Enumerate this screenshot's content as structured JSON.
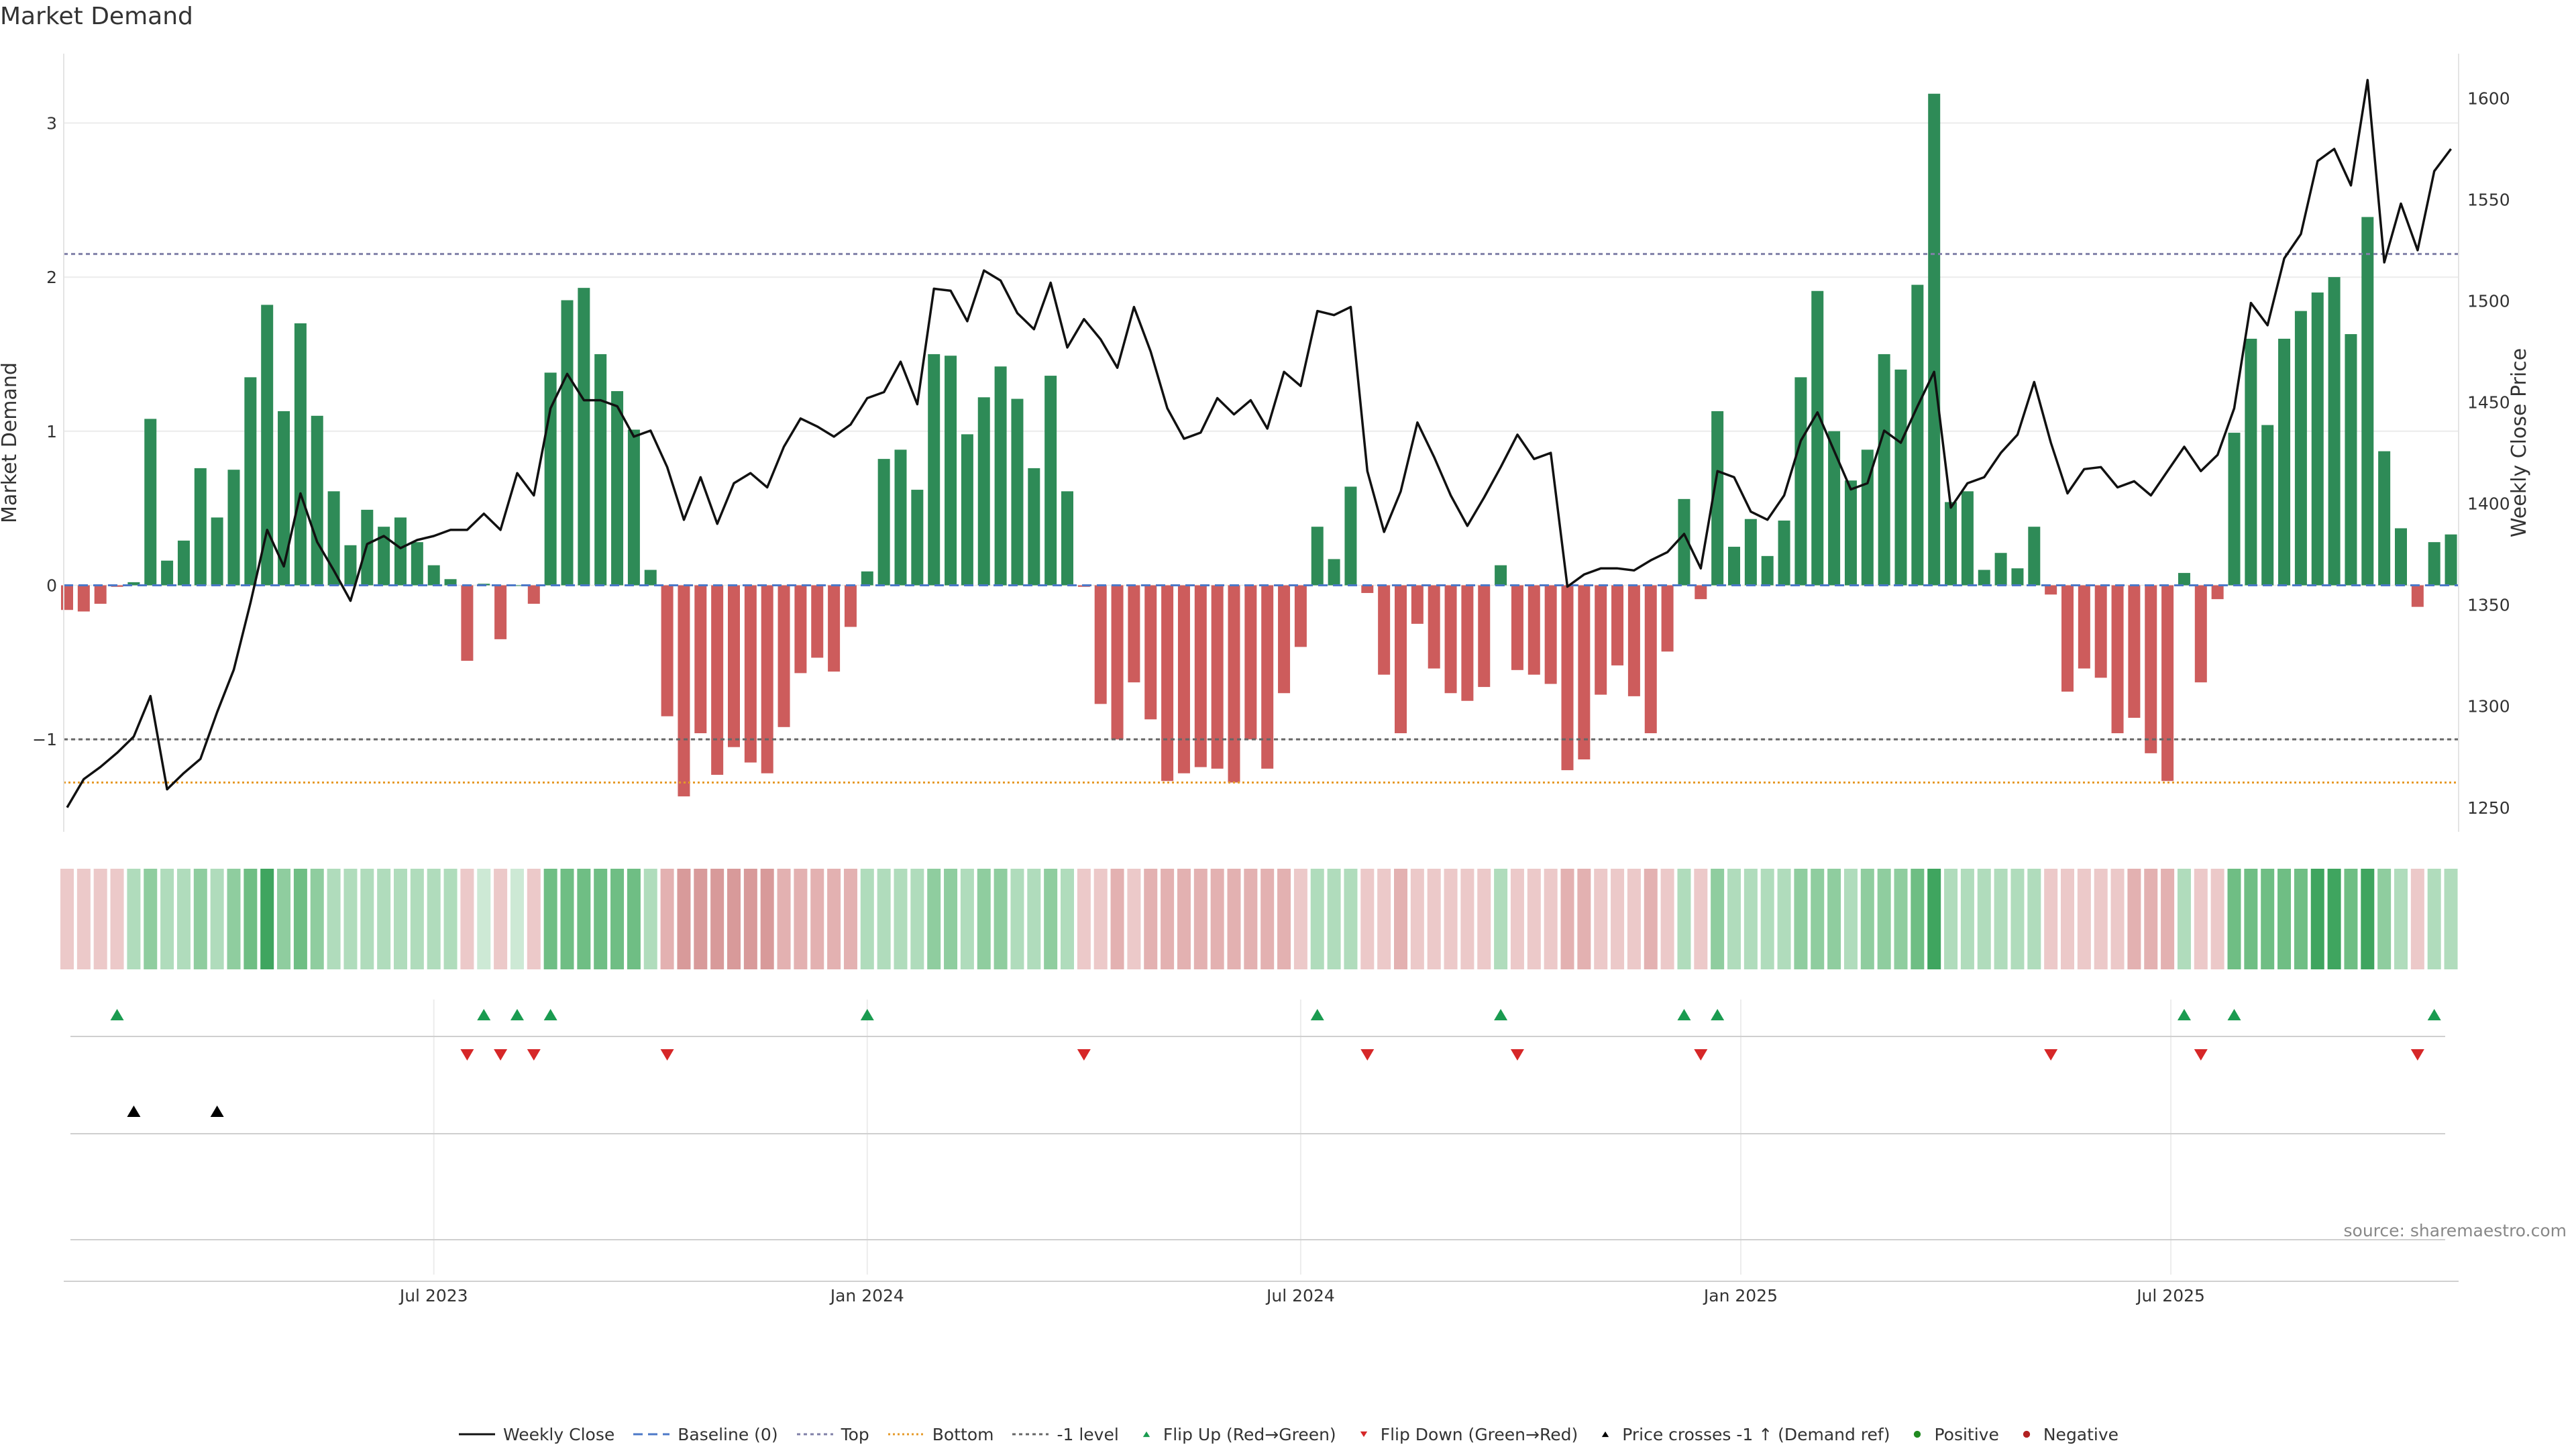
{
  "title": "Market Demand",
  "source": "source: sharemaestro.com",
  "colors": {
    "positive": "#2e8b57",
    "negative": "#cd5c5c",
    "price": "#111111",
    "baseline": "#4c78c8",
    "top": "#8080a8",
    "bottom": "#e69a28",
    "minus1": "#666666",
    "flip_up": "#1a9b50",
    "flip_down": "#d62728",
    "cross": "#000000"
  },
  "chart_data": {
    "type": "bar+line",
    "title": "Market Demand",
    "ylabel_left": "Market Demand",
    "ylabel_right": "Weekly Close Price",
    "ylim_left": [
      -1.6,
      3.45
    ],
    "ylim_right": [
      1238,
      1622
    ],
    "yticks_left": [
      -1,
      0,
      1,
      2,
      3
    ],
    "ytick_labels_left": [
      "−1",
      "0",
      "1",
      "2",
      "3"
    ],
    "yticks_right": [
      1250,
      1300,
      1350,
      1400,
      1450,
      1500,
      1550,
      1600
    ],
    "x_ticks": [
      {
        "label": "Jul 2023",
        "week": 22
      },
      {
        "label": "Jan 2024",
        "week": 48
      },
      {
        "label": "Jul 2024",
        "week": 74
      },
      {
        "label": "Jan 2025",
        "week": 100.4
      },
      {
        "label": "Jul 2025",
        "week": 126.2
      }
    ],
    "levels": {
      "baseline": 0,
      "top": 2.15,
      "bottom": -1.28,
      "minus_one": -1
    },
    "demand": [
      -0.16,
      -0.17,
      -0.12,
      -0.01,
      0.02,
      1.08,
      0.16,
      0.29,
      0.76,
      0.44,
      0.75,
      1.35,
      1.82,
      1.13,
      1.7,
      1.1,
      0.61,
      0.26,
      0.49,
      0.38,
      0.44,
      0.28,
      0.13,
      0.04,
      -0.49,
      0.01,
      -0.35,
      0.0,
      -0.12,
      1.38,
      1.85,
      1.93,
      1.5,
      1.26,
      1.01,
      0.1,
      -0.85,
      -1.37,
      -0.96,
      -1.23,
      -1.05,
      -1.15,
      -1.22,
      -0.92,
      -0.57,
      -0.47,
      -0.56,
      -0.27,
      0.09,
      0.82,
      0.88,
      0.62,
      1.5,
      1.49,
      0.98,
      1.22,
      1.42,
      1.21,
      0.76,
      1.36,
      0.61,
      -0.01,
      -0.77,
      -1.0,
      -0.63,
      -0.87,
      -1.27,
      -1.22,
      -1.18,
      -1.19,
      -1.28,
      -1.0,
      -1.19,
      -0.7,
      -0.4,
      0.38,
      0.17,
      0.64,
      -0.05,
      -0.58,
      -0.96,
      -0.25,
      -0.54,
      -0.7,
      -0.75,
      -0.66,
      0.13,
      -0.55,
      -0.58,
      -0.64,
      -1.2,
      -1.13,
      -0.71,
      -0.52,
      -0.72,
      -0.96,
      -0.43,
      0.56,
      -0.09,
      1.13,
      0.25,
      0.43,
      0.19,
      0.42,
      1.35,
      1.91,
      1.0,
      0.68,
      0.88,
      1.5,
      1.4,
      1.95,
      3.19,
      0.54,
      0.61,
      0.1,
      0.21,
      0.11,
      0.38,
      -0.06,
      -0.69,
      -0.54,
      -0.6,
      -0.96,
      -0.86,
      -1.09,
      -1.27,
      0.08,
      -0.63,
      -0.09,
      0.99,
      1.6,
      1.04,
      1.6,
      1.78,
      1.9,
      2.0,
      1.63,
      2.39,
      0.87,
      0.37,
      -0.14,
      0.28,
      0.33
    ],
    "price": [
      1250,
      1264,
      1270,
      1277,
      1285,
      1305,
      1259,
      1267,
      1274,
      1297,
      1318,
      1351,
      1387,
      1369,
      1405,
      1381,
      1367,
      1352,
      1380,
      1384,
      1378,
      1382,
      1384,
      1387,
      1387,
      1395,
      1387,
      1415,
      1404,
      1447,
      1464,
      1451,
      1451,
      1448,
      1433,
      1436,
      1418,
      1392,
      1413,
      1390,
      1410,
      1415,
      1408,
      1428,
      1442,
      1438,
      1433,
      1439,
      1452,
      1455,
      1470,
      1449,
      1506,
      1505,
      1490,
      1515,
      1510,
      1494,
      1486,
      1509,
      1477,
      1491,
      1481,
      1467,
      1497,
      1475,
      1447,
      1432,
      1435,
      1452,
      1444,
      1451,
      1437,
      1465,
      1458,
      1495,
      1493,
      1497,
      1416,
      1386,
      1406,
      1440,
      1423,
      1404,
      1389,
      1403,
      1418,
      1434,
      1422,
      1425,
      1359,
      1365,
      1368,
      1368,
      1367,
      1372,
      1376,
      1385,
      1368,
      1416,
      1413,
      1396,
      1392,
      1404,
      1431,
      1445,
      1426,
      1407,
      1410,
      1436,
      1430,
      1448,
      1465,
      1398,
      1410,
      1413,
      1425,
      1434,
      1460,
      1430,
      1405,
      1417,
      1418,
      1408,
      1411,
      1404,
      1416,
      1428,
      1416,
      1424,
      1447,
      1499,
      1488,
      1521,
      1533,
      1569,
      1575,
      1557,
      1609,
      1519,
      1548,
      1525,
      1564,
      1575
    ],
    "heat_levels": [
      1,
      1,
      1,
      1,
      2,
      3,
      2,
      2,
      3,
      2,
      3,
      4,
      5,
      3,
      4,
      3,
      2,
      2,
      2,
      2,
      2,
      2,
      2,
      2,
      1,
      1,
      1,
      1,
      1,
      4,
      4,
      4,
      4,
      4,
      4,
      2,
      2,
      3,
      3,
      3,
      3,
      3,
      3,
      2,
      2,
      2,
      2,
      2,
      2,
      2,
      2,
      2,
      3,
      3,
      2,
      3,
      3,
      2,
      2,
      3,
      2,
      1,
      1,
      2,
      1,
      2,
      2,
      2,
      2,
      2,
      2,
      2,
      2,
      2,
      1,
      2,
      2,
      2,
      1,
      1,
      2,
      1,
      1,
      1,
      1,
      1,
      2,
      1,
      1,
      1,
      2,
      2,
      1,
      1,
      1,
      2,
      1,
      2,
      1,
      3,
      2,
      2,
      2,
      2,
      3,
      3,
      3,
      2,
      3,
      3,
      3,
      4,
      6,
      2,
      2,
      2,
      2,
      2,
      2,
      1,
      1,
      1,
      1,
      1,
      2,
      2,
      2,
      2,
      1,
      1,
      4,
      4,
      4,
      4,
      4,
      5,
      5,
      4,
      5,
      3,
      2,
      1,
      2,
      2
    ],
    "flip_up_weeks": [
      3,
      25,
      27,
      29,
      48,
      75,
      86,
      97,
      99,
      127,
      130,
      142
    ],
    "flip_down_weeks": [
      24,
      26,
      28,
      36,
      61,
      78,
      87,
      98,
      119,
      128,
      141
    ],
    "cross_weeks": [
      4,
      9
    ],
    "legend": [
      "Weekly Close",
      "Baseline (0)",
      "Top",
      "Bottom",
      "-1 level",
      "Flip Up (Red→Green)",
      "Flip Down (Green→Red)",
      "Price crosses -1 ↑ (Demand ref)",
      "Positive",
      "Negative"
    ]
  }
}
